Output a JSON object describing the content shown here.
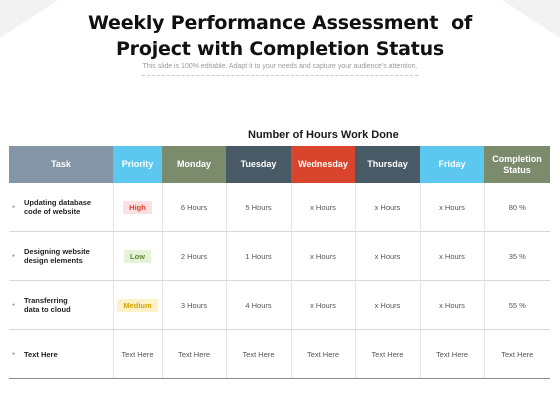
{
  "title": {
    "line1": "Weekly Performance Assessment  of",
    "line2": "Project with Completion Status"
  },
  "subtitle": "This slide is 100% editable. Adapt it to your needs and capture your audience's attention.",
  "section_heading": "Number of Hours Work Done",
  "colors": {
    "task_header": "#8496a5",
    "priority_header": "#5cc8ef",
    "monday_header": "#7d8b6d",
    "tuesday_header": "#485a66",
    "wednesday_header": "#d9442c",
    "thursday_header": "#485a66",
    "friday_header": "#5cc8ef",
    "completion_header": "#7d8b6d",
    "high_bg": "#fbe1e1",
    "high_text": "#d9442c",
    "low_bg": "#e4f3d8",
    "low_text": "#5e8a2e",
    "medium_bg": "#fdf2c7",
    "medium_text": "#d6a300"
  },
  "table": {
    "headers": {
      "task": "Task",
      "priority": "Priority",
      "monday": "Monday",
      "tuesday": "Tuesday",
      "wednesday": "Wednesday",
      "thursday": "Thursday",
      "friday": "Friday",
      "completion": "Completion\nStatus"
    },
    "rows": [
      {
        "task": "Updating database\ncode of website",
        "priority": "High",
        "monday": "6 Hours",
        "tuesday": "5 Hours",
        "wednesday": "x Hours",
        "thursday": "x Hours",
        "friday": "x Hours",
        "completion": "80 %"
      },
      {
        "task": "Designing website\ndesign elements",
        "priority": "Low",
        "monday": "2 Hours",
        "tuesday": "1 Hours",
        "wednesday": "x Hours",
        "thursday": "x Hours",
        "friday": "x Hours",
        "completion": "35 %"
      },
      {
        "task": "Transferring\ndata to cloud",
        "priority": "Medium",
        "monday": "3 Hours",
        "tuesday": "4 Hours",
        "wednesday": "x Hours",
        "thursday": "x Hours",
        "friday": "x Hours",
        "completion": "55 %"
      },
      {
        "task": "Text Here",
        "priority": "Text Here",
        "monday": "Text Here",
        "tuesday": "Text Here",
        "wednesday": "Text Here",
        "thursday": "Text Here",
        "friday": "Text Here",
        "completion": "Text Here"
      }
    ]
  }
}
